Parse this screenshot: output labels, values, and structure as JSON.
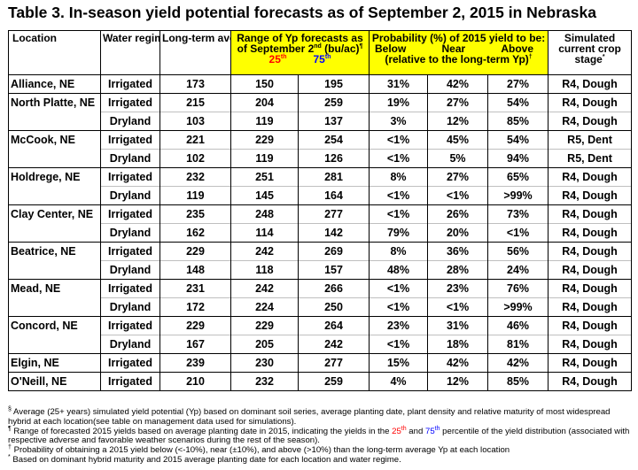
{
  "title": "Table 3. In-season yield potential forecasts as of September 2, 2015 in Nebraska",
  "headers": {
    "location": "Location",
    "water": "Water regime",
    "longterm": "Long-term average Yp (bu/ac)",
    "longterm_sup": "§",
    "range_line1": "Range of Yp forecasts as",
    "range_line2": "of September 2",
    "range_line2_sup": "nd",
    "range_line2_end": " (bu/ac)",
    "range_line2_mark": "¶",
    "p25": "25",
    "p25_sup": "th",
    "p75": "75",
    "p75_sup": "th",
    "prob_line1": "Probability (%) of 2015 yield to be:",
    "below": "Below",
    "near": "Near",
    "above": "Above",
    "prob_line3": "(relative to the long-term Yp)",
    "prob_mark": "†",
    "stage": "Simulated current crop stage",
    "stage_mark": "*"
  },
  "rows": [
    {
      "loc": "Alliance, NE",
      "regime": "Irrigated",
      "lt": "173",
      "p25": "150",
      "p75": "195",
      "below": "31%",
      "near": "42%",
      "above": "27%",
      "stage": "R4, Dough"
    },
    {
      "loc": "North Platte, NE",
      "regime": "Irrigated",
      "lt": "215",
      "p25": "204",
      "p75": "259",
      "below": "19%",
      "near": "27%",
      "above": "54%",
      "stage": "R4, Dough"
    },
    {
      "loc": "",
      "regime": "Dryland",
      "lt": "103",
      "p25": "119",
      "p75": "137",
      "below": "3%",
      "near": "12%",
      "above": "85%",
      "stage": "R4, Dough"
    },
    {
      "loc": "McCook, NE",
      "regime": "Irrigated",
      "lt": "221",
      "p25": "229",
      "p75": "254",
      "below": "<1%",
      "near": "45%",
      "above": "54%",
      "stage": "R5, Dent"
    },
    {
      "loc": "",
      "regime": "Dryland",
      "lt": "102",
      "p25": "119",
      "p75": "126",
      "below": "<1%",
      "near": "5%",
      "above": "94%",
      "stage": "R5, Dent"
    },
    {
      "loc": "Holdrege, NE",
      "regime": "Irrigated",
      "lt": "232",
      "p25": "251",
      "p75": "281",
      "below": "8%",
      "near": "27%",
      "above": "65%",
      "stage": "R4, Dough"
    },
    {
      "loc": "",
      "regime": "Dryland",
      "lt": "119",
      "p25": "145",
      "p75": "164",
      "below": "<1%",
      "near": "<1%",
      "above": ">99%",
      "stage": "R4, Dough"
    },
    {
      "loc": "Clay Center, NE",
      "regime": "Irrigated",
      "lt": "235",
      "p25": "248",
      "p75": "277",
      "below": "<1%",
      "near": "26%",
      "above": "73%",
      "stage": "R4, Dough"
    },
    {
      "loc": "",
      "regime": "Dryland",
      "lt": "162",
      "p25": "114",
      "p75": "142",
      "below": "79%",
      "near": "20%",
      "above": "<1%",
      "stage": "R4, Dough"
    },
    {
      "loc": "Beatrice, NE",
      "regime": "Irrigated",
      "lt": "229",
      "p25": "242",
      "p75": "269",
      "below": "8%",
      "near": "36%",
      "above": "56%",
      "stage": "R4, Dough"
    },
    {
      "loc": "",
      "regime": "Dryland",
      "lt": "148",
      "p25": "118",
      "p75": "157",
      "below": "48%",
      "near": "28%",
      "above": "24%",
      "stage": "R4, Dough"
    },
    {
      "loc": "Mead, NE",
      "regime": "Irrigated",
      "lt": "231",
      "p25": "242",
      "p75": "266",
      "below": "<1%",
      "near": "23%",
      "above": "76%",
      "stage": "R4, Dough"
    },
    {
      "loc": "",
      "regime": "Dryland",
      "lt": "172",
      "p25": "224",
      "p75": "250",
      "below": "<1%",
      "near": "<1%",
      "above": ">99%",
      "stage": "R4, Dough"
    },
    {
      "loc": "Concord, NE",
      "regime": "Irrigated",
      "lt": "229",
      "p25": "229",
      "p75": "264",
      "below": "23%",
      "near": "31%",
      "above": "46%",
      "stage": "R4, Dough"
    },
    {
      "loc": "",
      "regime": "Dryland",
      "lt": "167",
      "p25": "205",
      "p75": "242",
      "below": "<1%",
      "near": "18%",
      "above": "81%",
      "stage": "R4, Dough"
    },
    {
      "loc": "Elgin, NE",
      "regime": "Irrigated",
      "lt": "239",
      "p25": "230",
      "p75": "277",
      "below": "15%",
      "near": "42%",
      "above": "42%",
      "stage": "R4, Dough"
    },
    {
      "loc": "O'Neill, NE",
      "regime": "Irrigated",
      "lt": "210",
      "p25": "232",
      "p75": "259",
      "below": "4%",
      "near": "12%",
      "above": "85%",
      "stage": "R4, Dough"
    }
  ],
  "notes": {
    "n1_mark": "§",
    "n1": " Average (25+ years) simulated yield potential (Yp) based on dominant soil series, average planting date, plant density and relative maturity of most widespread hybrid at each location(see table on management data used for simulations).",
    "n2_mark": "¶",
    "n2_a": " Range of forecasted 2015 yields based on average planting date in 2015, indicating the yields in the ",
    "n2_25": "25",
    "n2_25_sup": "th",
    "n2_b": " and ",
    "n2_75": "75",
    "n2_75_sup": "th",
    "n2_c": " percentile of the yield distribution (associated with respective adverse and favorable weather scenarios during the rest of the season).",
    "n3_mark": "†",
    "n3": " Probability of obtaining a 2015 yield below (<-10%), near (±10%), and above (>10%) than the long-term average Yp at each location",
    "n4_mark": "*",
    "n4": " Based on dominant hybrid maturity and 2015 average planting date for each location and water regime."
  },
  "colors": {
    "highlight": "#ffff00",
    "p25": "#ff0000",
    "p75": "#0000ff",
    "border": "#000000",
    "grid": "#bfbfbf"
  }
}
